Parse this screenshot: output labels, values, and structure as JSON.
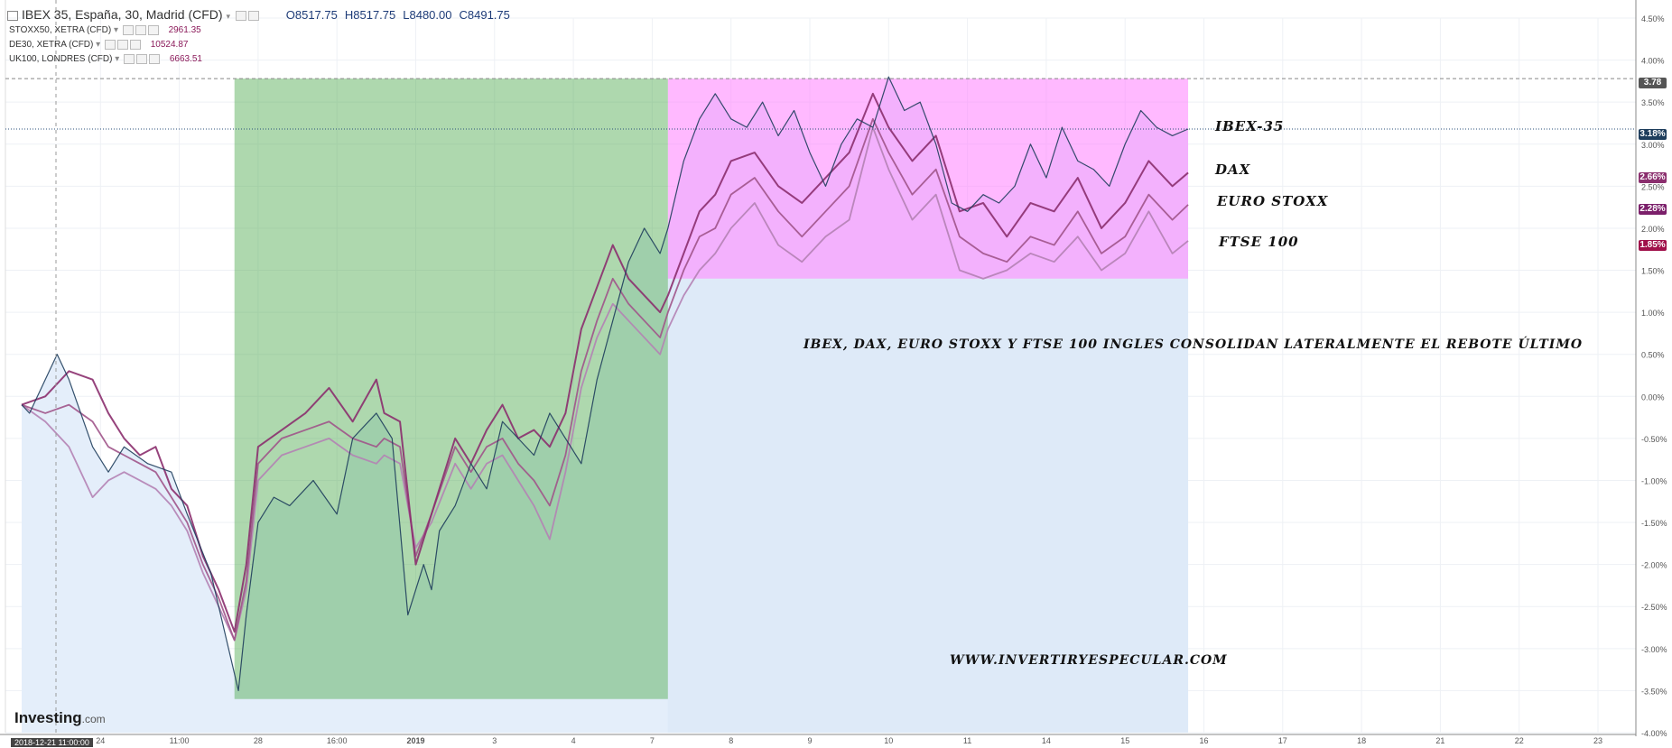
{
  "legend": {
    "main": {
      "symbol": "IBEX 35, España, 30, Madrid (CFD)",
      "open": "O8517.75",
      "high": "H8517.75",
      "low": "L8480.00",
      "close": "C8491.75"
    },
    "rows": [
      {
        "symbol": "STOXX50, XETRA (CFD)",
        "value": "2961.35"
      },
      {
        "symbol": "DE30, XETRA (CFD)",
        "value": "10524.87"
      },
      {
        "symbol": "UK100, LONDRES (CFD)",
        "value": "6663.51"
      }
    ]
  },
  "annotations": {
    "ibex": "IBEX-35",
    "dax": "DAX",
    "eurostoxx": "EURO STOXX",
    "ftse": "FTSE 100",
    "headline": "IBEX, DAX, EURO STOXX Y FTSE 100 INGLES CONSOLIDAN LATERALMENTE EL REBOTE ÚLTIMO",
    "website": "WWW.INVERTIRYESPECULAR.COM"
  },
  "branding": {
    "logo": "Investing",
    "suffix": ".com"
  },
  "axis_badges": {
    "hline": "3.78",
    "ibex": "3.18%",
    "dax": "2.66%",
    "eurostoxx": "2.28%",
    "ftse": "1.85%"
  },
  "date_badge": "2018-12-21 11:00:00",
  "colors": {
    "ibex": "#1e3d5c",
    "dax": "#8b2f6e",
    "eurostoxx": "#a0548a",
    "ftse": "#b482b4",
    "green_zone": "#4ca84c",
    "pink_zone": "#ff80ff",
    "blue_zone": "#dce8f7",
    "area_fill": "#e4eefa"
  },
  "chart_data": {
    "type": "line",
    "x_categories": [
      "24",
      "11:00",
      "28",
      "16:00",
      "2019",
      "3",
      "4",
      "7",
      "8",
      "9",
      "10",
      "11",
      "14",
      "15",
      "16",
      "17",
      "18",
      "21",
      "22",
      "23"
    ],
    "y_tick_labels": [
      "4.50%",
      "4.00%",
      "3.50%",
      "3.00%",
      "2.50%",
      "2.00%",
      "1.50%",
      "1.00%",
      "0.50%",
      "0.00%",
      "-0.50%",
      "-1.00%",
      "-1.50%",
      "-2.00%",
      "-2.50%",
      "-3.00%",
      "-3.50%",
      "-4.00%"
    ],
    "ylim": [
      -4.0,
      4.5
    ],
    "xlim": [
      0,
      20
    ],
    "horizontal_line": 3.78,
    "highlight_zones": [
      {
        "x_start": 2.7,
        "x_end": 8.2,
        "y_start": -3.6,
        "y_end": 3.78,
        "color": "green"
      },
      {
        "x_start": 8.2,
        "x_end": 14.8,
        "y_start": 1.4,
        "y_end": 3.78,
        "color": "pink"
      },
      {
        "x_start": 8.2,
        "x_end": 14.8,
        "y_start": -4.0,
        "y_end": 1.4,
        "color": "blue"
      }
    ],
    "series": [
      {
        "name": "IBEX-35",
        "x": [
          0,
          0.1,
          0.3,
          0.45,
          0.6,
          0.9,
          1.1,
          1.3,
          1.6,
          1.9,
          2.1,
          2.4,
          2.6,
          2.75,
          2.85,
          3.0,
          3.2,
          3.4,
          3.7,
          4.0,
          4.2,
          4.5,
          4.7,
          4.9,
          5.1,
          5.2,
          5.3,
          5.5,
          5.7,
          5.9,
          6.1,
          6.3,
          6.5,
          6.7,
          6.9,
          7.1,
          7.3,
          7.5,
          7.7,
          7.9,
          8.1,
          8.2,
          8.4,
          8.6,
          8.8,
          9.0,
          9.2,
          9.4,
          9.6,
          9.8,
          10.0,
          10.2,
          10.4,
          10.6,
          10.8,
          11.0,
          11.2,
          11.4,
          11.6,
          11.8,
          12.0,
          12.2,
          12.4,
          12.6,
          12.8,
          13.0,
          13.2,
          13.4,
          13.6,
          13.8,
          14.0,
          14.2,
          14.4,
          14.6,
          14.8
        ],
        "y": [
          -0.1,
          -0.2,
          0.2,
          0.5,
          0.2,
          -0.6,
          -0.9,
          -0.6,
          -0.8,
          -0.9,
          -1.4,
          -2.1,
          -2.9,
          -3.5,
          -2.6,
          -1.5,
          -1.2,
          -1.3,
          -1.0,
          -1.4,
          -0.5,
          -0.2,
          -0.5,
          -2.6,
          -2.0,
          -2.3,
          -1.6,
          -1.3,
          -0.8,
          -1.1,
          -0.3,
          -0.5,
          -0.7,
          -0.2,
          -0.5,
          -0.8,
          0.2,
          0.9,
          1.6,
          2.0,
          1.7,
          2.0,
          2.8,
          3.3,
          3.6,
          3.3,
          3.2,
          3.5,
          3.1,
          3.4,
          2.9,
          2.5,
          3.0,
          3.3,
          3.2,
          3.8,
          3.4,
          3.5,
          3.0,
          2.3,
          2.2,
          2.4,
          2.3,
          2.5,
          3.0,
          2.6,
          3.2,
          2.8,
          2.7,
          2.5,
          3.0,
          3.4,
          3.2,
          3.1,
          3.18
        ]
      },
      {
        "name": "DAX",
        "x": [
          0,
          0.3,
          0.6,
          0.9,
          1.1,
          1.3,
          1.5,
          1.7,
          1.9,
          2.1,
          2.3,
          2.5,
          2.7,
          2.85,
          3.0,
          3.3,
          3.6,
          3.9,
          4.2,
          4.5,
          4.6,
          4.8,
          5.0,
          5.2,
          5.5,
          5.7,
          5.9,
          6.1,
          6.3,
          6.5,
          6.7,
          6.9,
          7.1,
          7.3,
          7.5,
          7.7,
          7.9,
          8.1,
          8.2,
          8.4,
          8.6,
          8.8,
          9.0,
          9.3,
          9.6,
          9.9,
          10.2,
          10.5,
          10.8,
          11.0,
          11.3,
          11.6,
          11.9,
          12.2,
          12.5,
          12.8,
          13.1,
          13.4,
          13.7,
          14.0,
          14.3,
          14.6,
          14.8
        ],
        "y": [
          -0.1,
          0.0,
          0.3,
          0.2,
          -0.2,
          -0.5,
          -0.7,
          -0.6,
          -1.1,
          -1.3,
          -1.9,
          -2.3,
          -2.8,
          -2.0,
          -0.6,
          -0.4,
          -0.2,
          0.1,
          -0.3,
          0.2,
          -0.2,
          -0.3,
          -2.0,
          -1.4,
          -0.5,
          -0.8,
          -0.4,
          -0.1,
          -0.5,
          -0.4,
          -0.6,
          -0.2,
          0.8,
          1.3,
          1.8,
          1.4,
          1.2,
          1.0,
          1.2,
          1.7,
          2.2,
          2.4,
          2.8,
          2.9,
          2.5,
          2.3,
          2.6,
          2.9,
          3.6,
          3.2,
          2.8,
          3.1,
          2.2,
          2.3,
          1.9,
          2.3,
          2.2,
          2.6,
          2.0,
          2.3,
          2.8,
          2.5,
          2.66
        ]
      },
      {
        "name": "EURO STOXX",
        "x": [
          0,
          0.3,
          0.6,
          0.9,
          1.1,
          1.3,
          1.5,
          1.7,
          1.9,
          2.1,
          2.3,
          2.5,
          2.7,
          2.85,
          3.0,
          3.3,
          3.6,
          3.9,
          4.2,
          4.5,
          4.6,
          4.8,
          5.0,
          5.2,
          5.5,
          5.7,
          5.9,
          6.1,
          6.3,
          6.5,
          6.7,
          6.9,
          7.1,
          7.3,
          7.5,
          7.7,
          7.9,
          8.1,
          8.2,
          8.4,
          8.6,
          8.8,
          9.0,
          9.3,
          9.6,
          9.9,
          10.2,
          10.5,
          10.8,
          11.0,
          11.3,
          11.6,
          11.9,
          12.2,
          12.5,
          12.8,
          13.1,
          13.4,
          13.7,
          14.0,
          14.3,
          14.6,
          14.8
        ],
        "y": [
          -0.1,
          -0.2,
          -0.1,
          -0.3,
          -0.6,
          -0.7,
          -0.8,
          -0.9,
          -1.2,
          -1.5,
          -2.0,
          -2.4,
          -2.9,
          -2.2,
          -0.8,
          -0.5,
          -0.4,
          -0.3,
          -0.5,
          -0.6,
          -0.5,
          -0.6,
          -1.9,
          -1.4,
          -0.6,
          -0.9,
          -0.6,
          -0.5,
          -0.8,
          -1.0,
          -1.3,
          -0.7,
          0.3,
          0.9,
          1.4,
          1.1,
          0.9,
          0.7,
          1.0,
          1.5,
          1.9,
          2.0,
          2.4,
          2.6,
          2.2,
          1.9,
          2.2,
          2.5,
          3.3,
          2.9,
          2.4,
          2.7,
          1.9,
          1.7,
          1.6,
          1.9,
          1.8,
          2.2,
          1.7,
          1.9,
          2.4,
          2.1,
          2.28
        ]
      },
      {
        "name": "FTSE 100",
        "x": [
          0,
          0.3,
          0.6,
          0.9,
          1.1,
          1.3,
          1.5,
          1.7,
          1.9,
          2.1,
          2.3,
          2.5,
          2.7,
          2.85,
          3.0,
          3.3,
          3.6,
          3.9,
          4.2,
          4.5,
          4.6,
          4.8,
          5.0,
          5.2,
          5.5,
          5.7,
          5.9,
          6.1,
          6.3,
          6.5,
          6.7,
          6.9,
          7.1,
          7.3,
          7.5,
          7.7,
          7.9,
          8.1,
          8.2,
          8.4,
          8.6,
          8.8,
          9.0,
          9.3,
          9.6,
          9.9,
          10.2,
          10.5,
          10.8,
          11.0,
          11.3,
          11.6,
          11.9,
          12.2,
          12.5,
          12.8,
          13.1,
          13.4,
          13.7,
          14.0,
          14.3,
          14.6,
          14.8
        ],
        "y": [
          -0.1,
          -0.3,
          -0.6,
          -1.2,
          -1.0,
          -0.9,
          -1.0,
          -1.1,
          -1.3,
          -1.6,
          -2.1,
          -2.5,
          -2.9,
          -2.3,
          -1.0,
          -0.7,
          -0.6,
          -0.5,
          -0.7,
          -0.8,
          -0.7,
          -0.8,
          -1.8,
          -1.5,
          -0.8,
          -1.1,
          -0.8,
          -0.7,
          -1.0,
          -1.3,
          -1.7,
          -0.9,
          0.1,
          0.7,
          1.1,
          0.9,
          0.7,
          0.5,
          0.8,
          1.2,
          1.5,
          1.7,
          2.0,
          2.3,
          1.8,
          1.6,
          1.9,
          2.1,
          3.2,
          2.7,
          2.1,
          2.4,
          1.5,
          1.4,
          1.5,
          1.7,
          1.6,
          1.9,
          1.5,
          1.7,
          2.2,
          1.7,
          1.85
        ]
      }
    ]
  }
}
